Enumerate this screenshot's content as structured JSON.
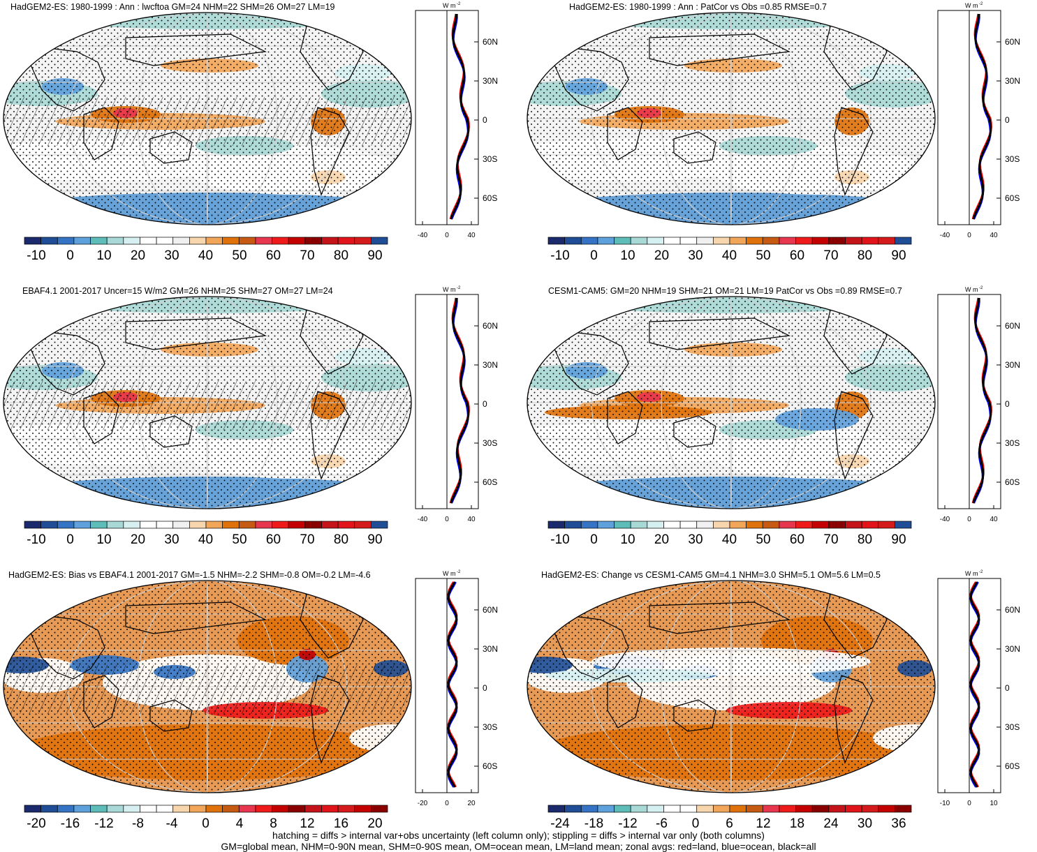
{
  "footer": {
    "line1": "hatching = diffs > internal var+obs uncertainty (left column only); stippling = diffs > internal var only (both columns)",
    "line2": "GM=global mean, NHM=0-90N mean, SHM=0-90S mean, OM=ocean mean, LM=land mean; zonal avgs: red=land, blue=ocean, black=all"
  },
  "zonal_common": {
    "unit": "W m",
    "unit_sup": "-2",
    "lat_labels": [
      "60N",
      "30N",
      "0",
      "30S",
      "60S"
    ]
  },
  "panels": [
    {
      "title": "HadGEM2-ES: 1980-1999 : Ann : lwcftoa GM=24 NHM=22 SHM=26 OM=27 LM=19",
      "colorbar_labels": [
        "-10",
        "0",
        "10",
        "20",
        "30",
        "40",
        "50",
        "60",
        "70",
        "80",
        "90"
      ],
      "zonal_xticks": [
        "-40",
        "0",
        "40"
      ],
      "style": "field",
      "hatch": true
    },
    {
      "title": "HadGEM2-ES: 1980-1999 : Ann : PatCor vs Obs =0.85 RMSE=0.7",
      "colorbar_labels": [
        "-10",
        "0",
        "10",
        "20",
        "30",
        "40",
        "50",
        "60",
        "70",
        "80",
        "90"
      ],
      "zonal_xticks": [
        "-40",
        "0",
        "40"
      ],
      "style": "field",
      "hatch": false
    },
    {
      "title": "EBAF4.1 2001-2017 Uncer=15 W/m2 GM=26 NHM=25 SHM=27 OM=27 LM=24",
      "colorbar_labels": [
        "-10",
        "0",
        "10",
        "20",
        "30",
        "40",
        "50",
        "60",
        "70",
        "80",
        "90"
      ],
      "zonal_xticks": [
        "-40",
        "0",
        "40"
      ],
      "style": "field",
      "hatch": true
    },
    {
      "title": "CESM1-CAM5: GM=20 NHM=19 SHM=21 OM=21 LM=19 PatCor vs Obs =0.89 RMSE=0.7",
      "colorbar_labels": [
        "-10",
        "0",
        "10",
        "20",
        "30",
        "40",
        "50",
        "60",
        "70",
        "80",
        "90"
      ],
      "zonal_xticks": [
        "-40",
        "0",
        "40"
      ],
      "style": "field",
      "hatch": false
    },
    {
      "title": "HadGEM2-ES: Bias vs EBAF4.1 2001-2017 GM=-1.5 NHM=-2.2 SHM=-0.8 OM=-0.2 LM=-4.6",
      "colorbar_labels": [
        "-20",
        "-16",
        "-12",
        "-8",
        "-4",
        "0",
        "4",
        "8",
        "12",
        "16",
        "20"
      ],
      "zonal_xticks": [
        "-20",
        "0",
        "20"
      ],
      "style": "diff",
      "hatch": true
    },
    {
      "title": "HadGEM2-ES: Change vs CESM1-CAM5 GM=4.1 NHM=3.0 SHM=5.1 OM=5.6 LM=0.5",
      "colorbar_labels": [
        "-24",
        "-18",
        "-12",
        "-6",
        "0",
        "6",
        "12",
        "18",
        "24",
        "30",
        "36"
      ],
      "zonal_xticks": [
        "-10",
        "0",
        "10"
      ],
      "style": "diff",
      "hatch": false
    }
  ],
  "colors": {
    "land_line": "#ff0000",
    "ocean_line": "#0000ff",
    "all_line": "#000000"
  }
}
